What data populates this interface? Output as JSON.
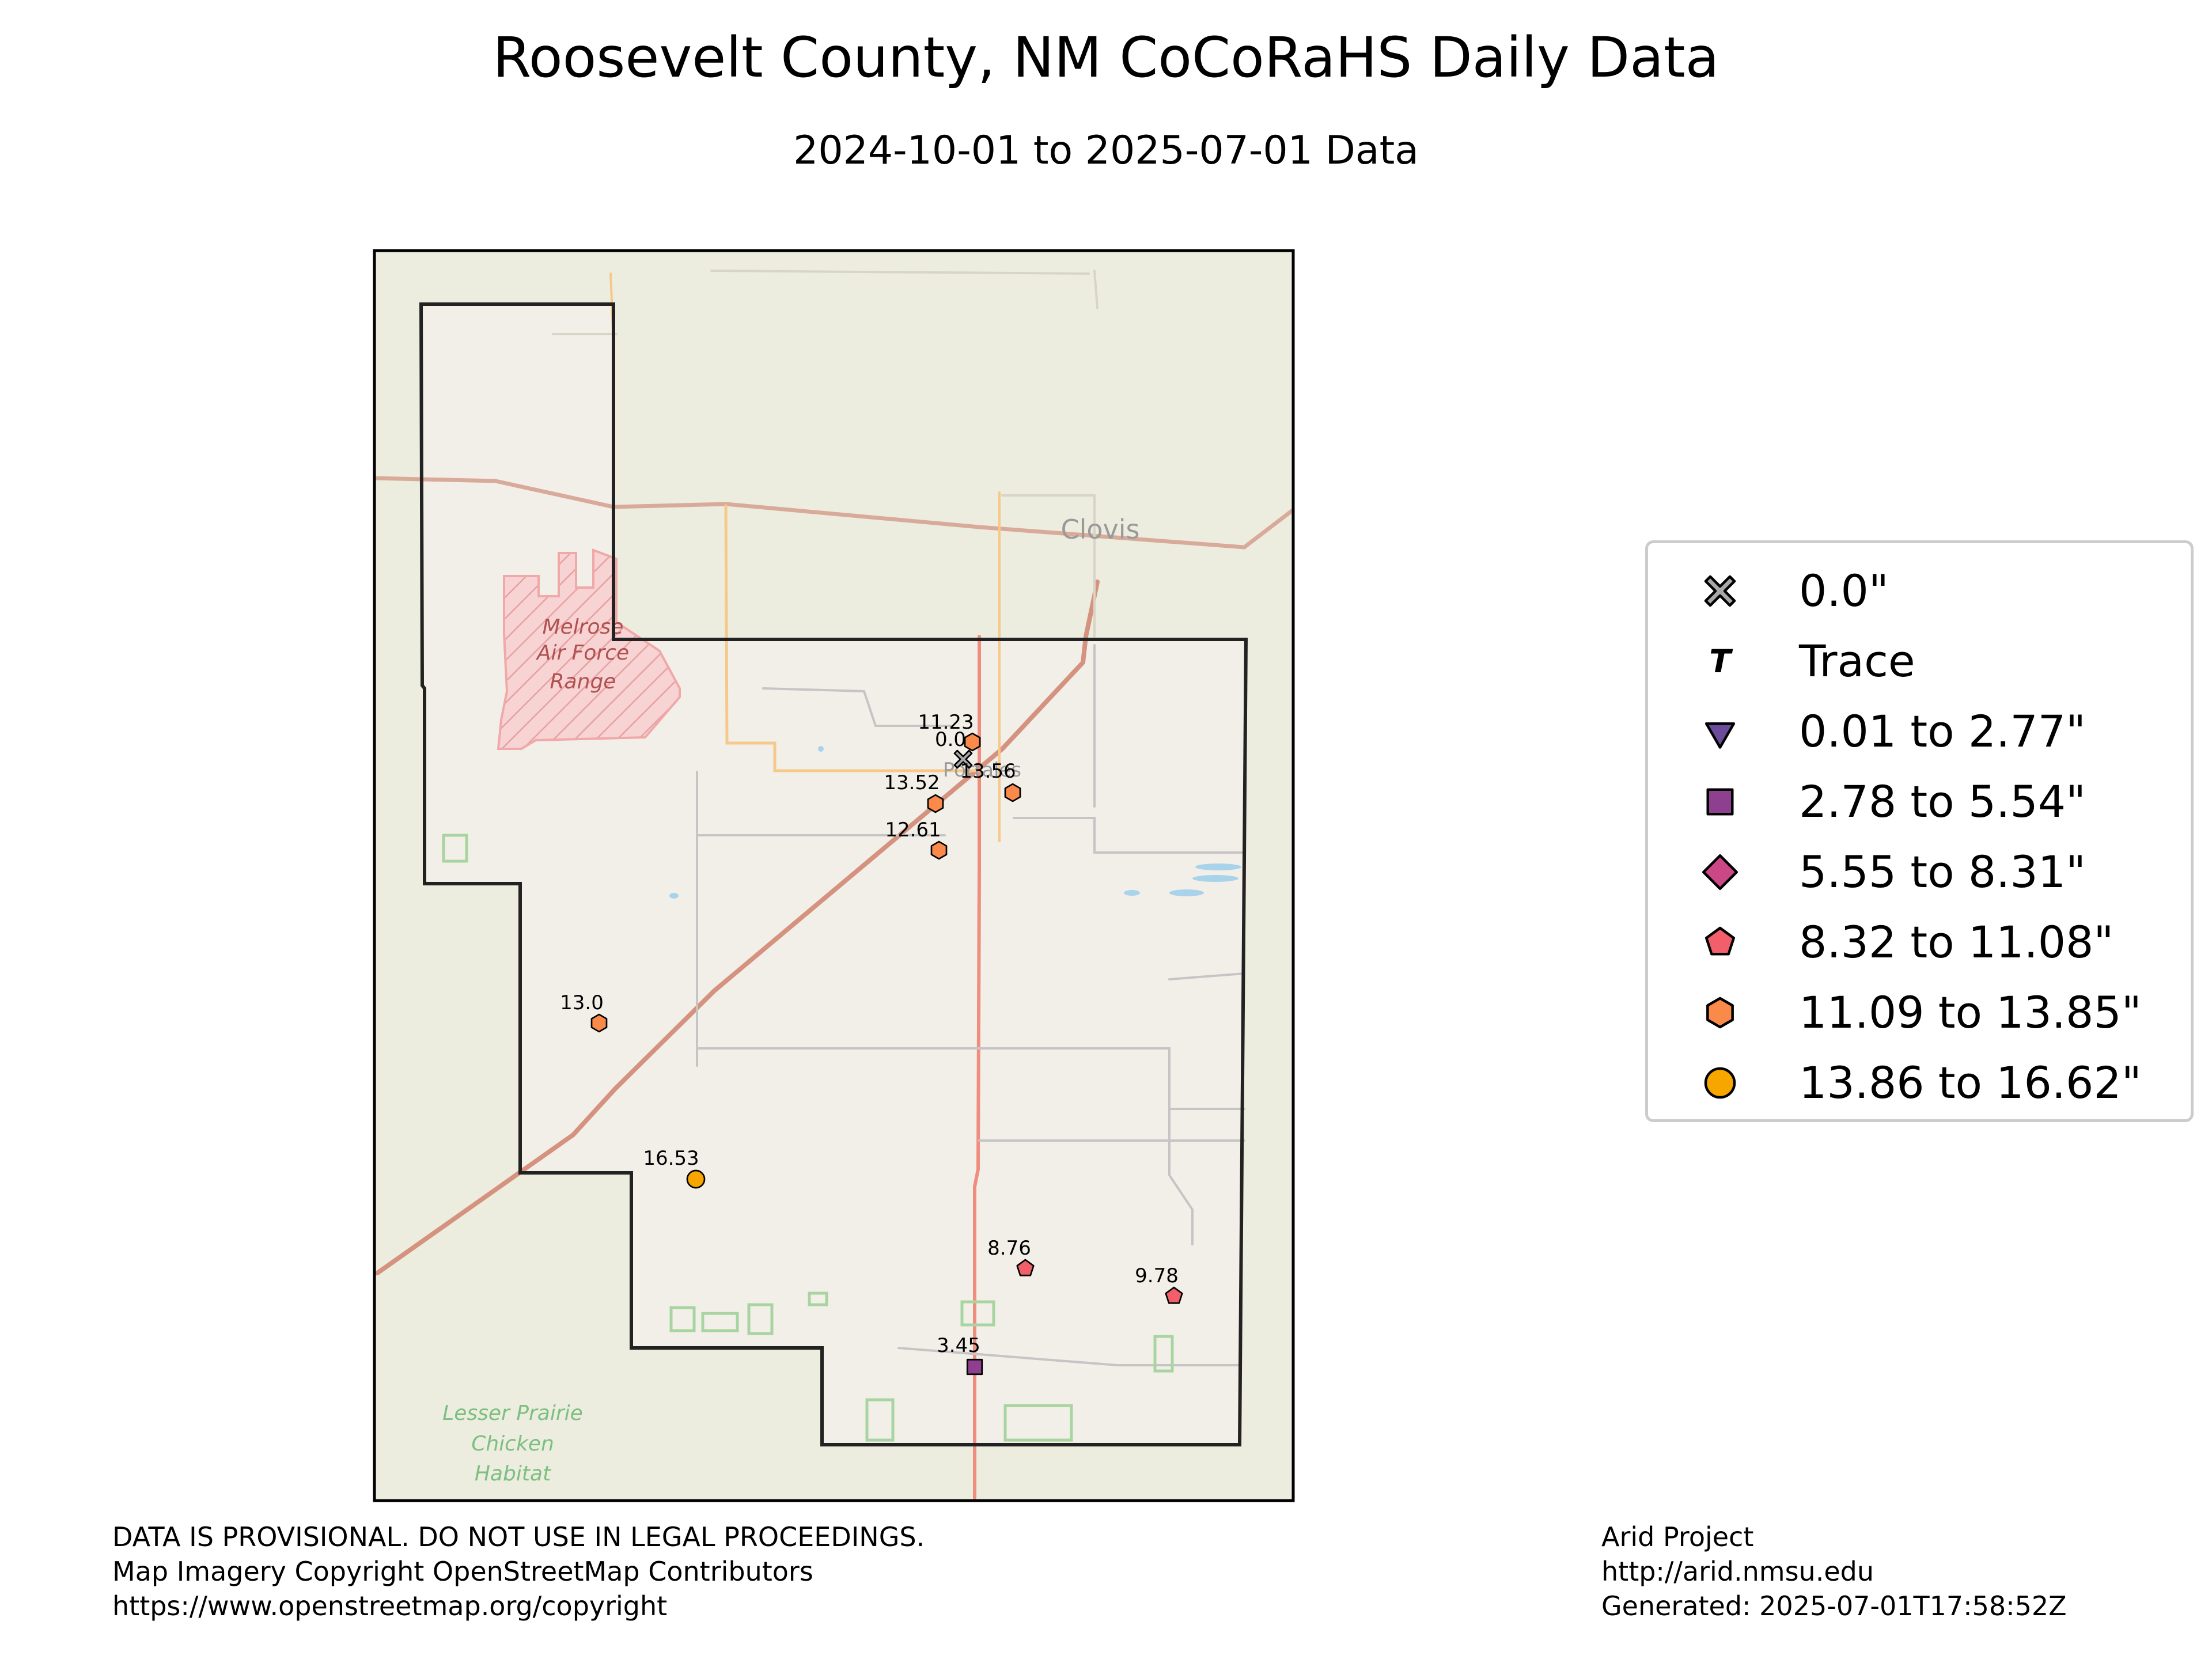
{
  "title": "Roosevelt County, NM CoCoRaHS Daily Data",
  "subtitle": "2024-10-01 to 2025-07-01 Data",
  "map_labels": {
    "city": "Clovis",
    "area1": [
      "Melrose",
      "Air Force",
      "Range"
    ],
    "area2": [
      "Lesser Prairie",
      "Chicken",
      "Habitat"
    ],
    "town_partial": "Portales"
  },
  "stations": [
    {
      "value": "11.23",
      "category": "11.09 to 13.85\""
    },
    {
      "value": "0.0",
      "category": "0.0\""
    },
    {
      "value": "13.56",
      "category": "11.09 to 13.85\""
    },
    {
      "value": "13.52",
      "category": "11.09 to 13.85\""
    },
    {
      "value": "12.61",
      "category": "11.09 to 13.85\""
    },
    {
      "value": "13.0",
      "category": "11.09 to 13.85\""
    },
    {
      "value": "16.53",
      "category": "13.86 to 16.62\""
    },
    {
      "value": "8.76",
      "category": "8.32 to 11.08\""
    },
    {
      "value": "9.78",
      "category": "8.32 to 11.08\""
    },
    {
      "value": "3.45",
      "category": "2.78 to 5.54\""
    }
  ],
  "legend": [
    {
      "label": "0.0\"",
      "shape": "x-cross",
      "color": "#a8a8a8"
    },
    {
      "label": "Trace",
      "shape": "T-letter",
      "color": "#000000"
    },
    {
      "label": "0.01 to 2.77\"",
      "shape": "triangle-down",
      "color": "#6b4c9a"
    },
    {
      "label": "2.78 to 5.54\"",
      "shape": "square",
      "color": "#8e3f8f"
    },
    {
      "label": "5.55 to 8.31\"",
      "shape": "diamond",
      "color": "#cc4785"
    },
    {
      "label": "8.32 to 11.08\"",
      "shape": "pentagon",
      "color": "#f25f6a"
    },
    {
      "label": "11.09 to 13.85\"",
      "shape": "hexagon",
      "color": "#f98a4a"
    },
    {
      "label": "13.86 to 16.62\"",
      "shape": "circle",
      "color": "#f7a600"
    }
  ],
  "footer_left": [
    "DATA IS PROVISIONAL. DO NOT USE IN LEGAL PROCEEDINGS.",
    "Map Imagery Copyright OpenStreetMap Contributors",
    "https://www.openstreetmap.org/copyright"
  ],
  "footer_right": [
    "Arid Project",
    "http://arid.nmsu.edu",
    "Generated: 2025-07-01T17:58:52Z"
  ]
}
